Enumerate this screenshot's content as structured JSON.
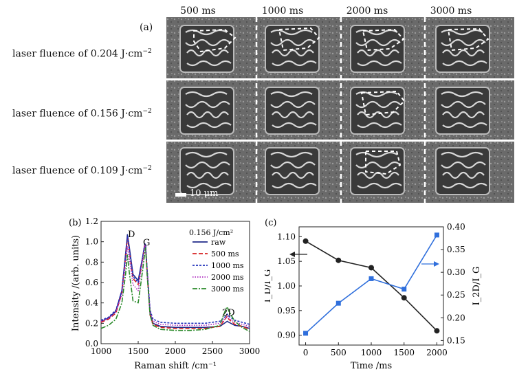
{
  "panel_a": {
    "label": "(a)",
    "columns": [
      "500 ms",
      "1000 ms",
      "2000 ms",
      "3000 ms"
    ],
    "rows": [
      {
        "label": "laser fluence of 0.204 J·cm",
        "exp": "−2"
      },
      {
        "label": "laser fluence of 0.156 J·cm",
        "exp": "−2"
      },
      {
        "label": "laser fluence of 0.109 J·cm",
        "exp": "−2"
      }
    ],
    "scale_bar": "10 μm"
  },
  "chart_data": [
    {
      "panel": "(b)",
      "type": "line",
      "xlabel": "Raman shift /cm⁻¹",
      "ylabel": "Intensity /(arb. units)",
      "xlim": [
        1000,
        3000
      ],
      "ylim": [
        0,
        1.2
      ],
      "xticks": [
        1000,
        1500,
        2000,
        2500,
        3000
      ],
      "yticks": [
        0,
        0.2,
        0.4,
        0.6,
        0.8,
        1.0,
        1.2
      ],
      "annotations": [
        "D",
        "G",
        "2D"
      ],
      "legend_title": "0.156 J/cm²",
      "legend_position": "top-right",
      "series": [
        {
          "name": "raw",
          "color": "#1f2a8a",
          "style": "solid",
          "x": [
            1000,
            1100,
            1200,
            1280,
            1330,
            1355,
            1380,
            1430,
            1500,
            1560,
            1590,
            1600,
            1620,
            1660,
            1700,
            1800,
            2000,
            2200,
            2400,
            2600,
            2680,
            2700,
            2720,
            2800,
            2900,
            3000
          ],
          "y": [
            0.22,
            0.25,
            0.32,
            0.52,
            0.88,
            1.07,
            0.95,
            0.68,
            0.62,
            0.85,
            0.98,
            0.96,
            0.72,
            0.3,
            0.2,
            0.17,
            0.16,
            0.16,
            0.16,
            0.17,
            0.21,
            0.22,
            0.21,
            0.18,
            0.17,
            0.15
          ]
        },
        {
          "name": "500 ms",
          "color": "#d62020",
          "style": "dashed",
          "x": [
            1000,
            1100,
            1200,
            1280,
            1330,
            1355,
            1380,
            1430,
            1500,
            1560,
            1590,
            1600,
            1620,
            1660,
            1700,
            1800,
            2000,
            2200,
            2400,
            2600,
            2680,
            2700,
            2720,
            2800,
            2900,
            3000
          ],
          "y": [
            0.21,
            0.24,
            0.3,
            0.5,
            0.85,
            1.04,
            0.92,
            0.64,
            0.58,
            0.83,
            0.97,
            0.95,
            0.7,
            0.28,
            0.19,
            0.16,
            0.15,
            0.15,
            0.15,
            0.17,
            0.25,
            0.27,
            0.24,
            0.19,
            0.17,
            0.14
          ]
        },
        {
          "name": "1000 ms",
          "color": "#2233bb",
          "style": "dotted",
          "x": [
            1000,
            1100,
            1200,
            1280,
            1330,
            1355,
            1380,
            1430,
            1500,
            1560,
            1590,
            1600,
            1620,
            1660,
            1700,
            1800,
            2000,
            2200,
            2400,
            2600,
            2680,
            2700,
            2720,
            2800,
            2900,
            3000
          ],
          "y": [
            0.23,
            0.26,
            0.33,
            0.52,
            0.86,
            1.05,
            0.93,
            0.66,
            0.6,
            0.85,
            0.98,
            0.96,
            0.74,
            0.33,
            0.24,
            0.21,
            0.2,
            0.2,
            0.2,
            0.22,
            0.27,
            0.29,
            0.27,
            0.23,
            0.21,
            0.19
          ]
        },
        {
          "name": "2000 ms",
          "color": "#b030c0",
          "style": "dotted-fine",
          "x": [
            1000,
            1100,
            1200,
            1280,
            1330,
            1355,
            1380,
            1430,
            1500,
            1560,
            1590,
            1600,
            1620,
            1660,
            1700,
            1800,
            2000,
            2200,
            2400,
            2600,
            2680,
            2700,
            2720,
            2800,
            2900,
            3000
          ],
          "y": [
            0.22,
            0.25,
            0.31,
            0.48,
            0.78,
            0.95,
            0.84,
            0.58,
            0.52,
            0.82,
            0.96,
            0.95,
            0.72,
            0.32,
            0.22,
            0.19,
            0.18,
            0.18,
            0.18,
            0.2,
            0.25,
            0.27,
            0.25,
            0.21,
            0.19,
            0.17
          ]
        },
        {
          "name": "3000 ms",
          "color": "#2a8a2a",
          "style": "dashdot",
          "x": [
            1000,
            1100,
            1200,
            1280,
            1330,
            1355,
            1380,
            1430,
            1500,
            1560,
            1590,
            1600,
            1620,
            1660,
            1700,
            1800,
            2000,
            2200,
            2400,
            2600,
            2680,
            2700,
            2720,
            2800,
            2900,
            3000
          ],
          "y": [
            0.15,
            0.18,
            0.24,
            0.4,
            0.68,
            0.87,
            0.7,
            0.42,
            0.4,
            0.72,
            0.9,
            0.94,
            0.68,
            0.28,
            0.18,
            0.14,
            0.13,
            0.13,
            0.14,
            0.18,
            0.34,
            0.36,
            0.32,
            0.22,
            0.16,
            0.12
          ]
        }
      ]
    },
    {
      "panel": "(c)",
      "type": "line",
      "xlabel": "Time /ms",
      "ylabel_left": "I_D/I_G",
      "ylabel_right": "I_2D/I_G",
      "xlim": [
        -100,
        2100
      ],
      "ylim_left": [
        0.88,
        1.12
      ],
      "ylim_right": [
        0.14,
        0.4
      ],
      "xticks": [
        0,
        500,
        1000,
        1500,
        2000
      ],
      "yticks_left": [
        0.9,
        0.95,
        1.0,
        1.05,
        1.1
      ],
      "yticks_right": [
        0.15,
        0.2,
        0.25,
        0.3,
        0.35,
        0.4
      ],
      "series": [
        {
          "name": "I_D/I_G",
          "axis": "left",
          "color": "#222222",
          "marker": "circle",
          "x": [
            0,
            500,
            1000,
            1500,
            2000
          ],
          "y": [
            1.091,
            1.052,
            1.037,
            0.976,
            0.909
          ]
        },
        {
          "name": "I_2D/I_G",
          "axis": "right",
          "color": "#2f6fdc",
          "marker": "square",
          "x": [
            0,
            500,
            1000,
            1500,
            2000
          ],
          "y": [
            0.166,
            0.232,
            0.286,
            0.263,
            0.382
          ]
        }
      ]
    }
  ],
  "panel_b_label": "(b)",
  "panel_c_label": "(c)"
}
